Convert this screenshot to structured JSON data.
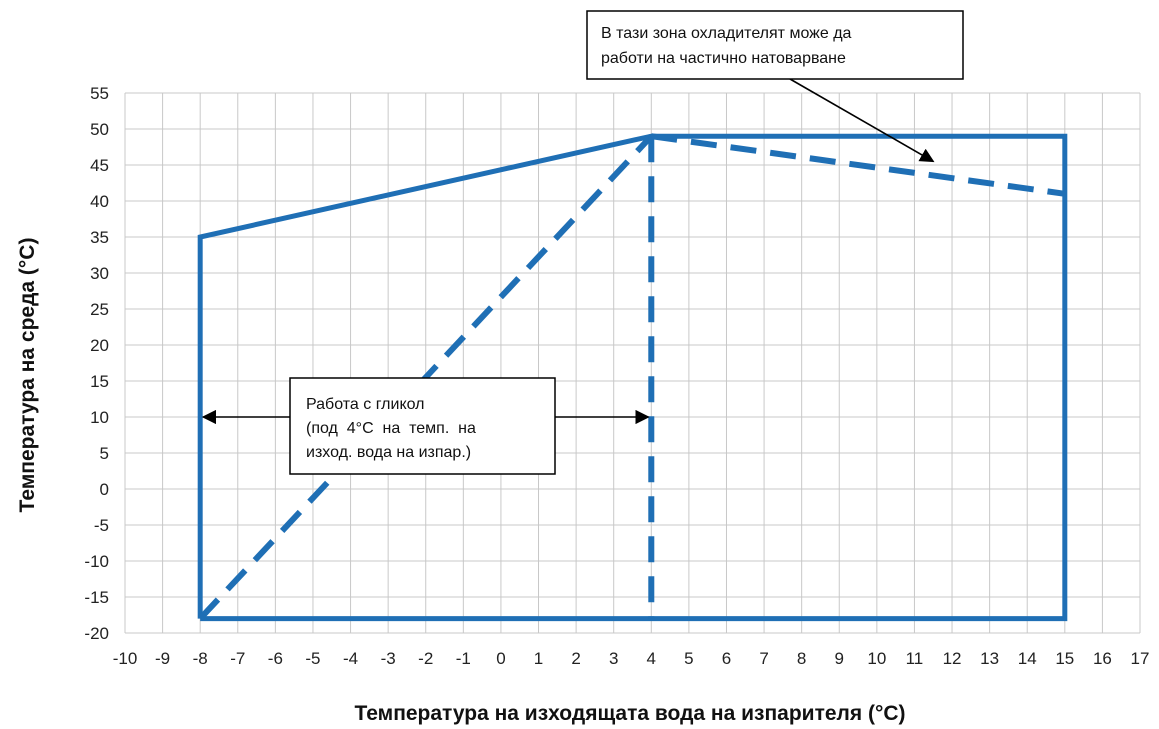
{
  "chart_data": {
    "type": "line",
    "xlabel": "Температура на изходящата вода на изпарителя (°C)",
    "ylabel": "Температура на среда (°C)",
    "xlim": [
      -10,
      17
    ],
    "ylim": [
      -20,
      55
    ],
    "x_ticks": [
      -10,
      -9,
      -8,
      -7,
      -6,
      -5,
      -4,
      -3,
      -2,
      -1,
      0,
      1,
      2,
      3,
      4,
      5,
      6,
      7,
      8,
      9,
      10,
      11,
      12,
      13,
      14,
      15,
      16,
      17
    ],
    "y_ticks": [
      55,
      50,
      45,
      40,
      35,
      30,
      25,
      20,
      15,
      10,
      5,
      0,
      -5,
      -10,
      -15,
      -20
    ],
    "grid": true,
    "series": [
      {
        "style": "solid",
        "color": "#1f6fb5",
        "points": [
          [
            -8,
            -18
          ],
          [
            -8,
            35
          ],
          [
            4,
            49
          ],
          [
            15,
            49
          ],
          [
            15,
            -18
          ],
          [
            -8,
            -18
          ]
        ]
      },
      {
        "style": "dashed",
        "color": "#1f6fb5",
        "points": [
          [
            -8,
            -18
          ],
          [
            4,
            49
          ]
        ]
      },
      {
        "style": "dashed",
        "color": "#1f6fb5",
        "points": [
          [
            4,
            49
          ],
          [
            4,
            -18
          ]
        ]
      },
      {
        "style": "dashed",
        "color": "#1f6fb5",
        "points": [
          [
            4,
            49
          ],
          [
            15,
            41
          ]
        ]
      }
    ],
    "annotations": [
      {
        "lines": [
          "В тази зона охладителят може да",
          "работи на частично натоварване"
        ],
        "arrow_to": [
          11.5,
          45.5
        ]
      },
      {
        "lines": [
          "Работа с гликол",
          "(под  4°C  на  темп.  на",
          "изход. вода на изпар.)"
        ],
        "arrows_to": [
          [
            -8,
            10
          ],
          [
            4,
            10
          ]
        ]
      }
    ]
  }
}
